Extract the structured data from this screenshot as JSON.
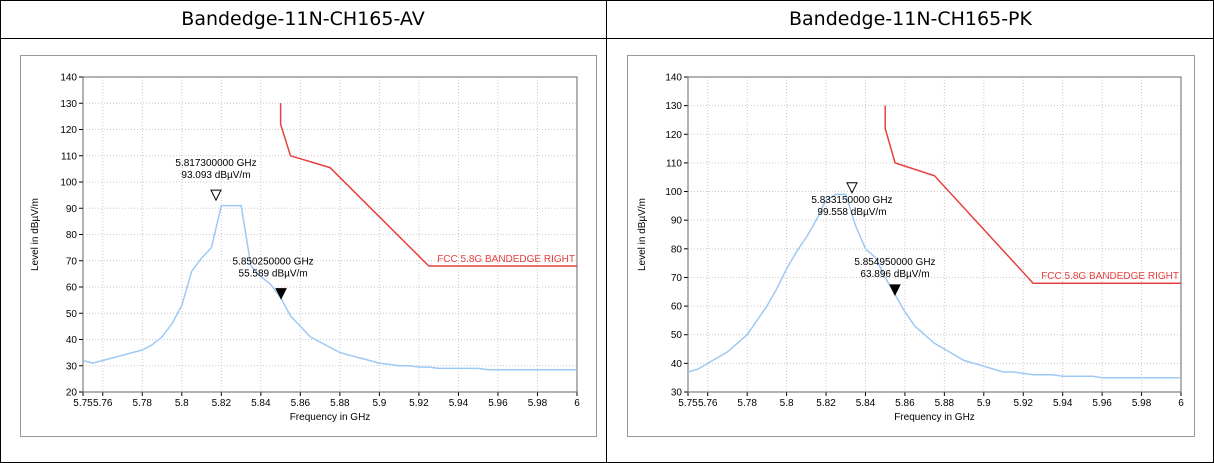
{
  "chart_data": [
    {
      "type": "line",
      "title": "Bandedge-11N-CH165-AV",
      "x_label": "Frequency in GHz",
      "y_label": "Level in dBµV/m",
      "xlim": [
        5.75,
        6
      ],
      "xticks": [
        5.75,
        5.76,
        5.78,
        5.8,
        5.82,
        5.84,
        5.86,
        5.88,
        5.9,
        5.92,
        5.94,
        5.96,
        5.98,
        6
      ],
      "ylim": [
        20,
        140
      ],
      "yticks": [
        20,
        30,
        40,
        50,
        60,
        70,
        80,
        90,
        100,
        110,
        120,
        130,
        140
      ],
      "grid": true,
      "x": [
        5.75,
        5.755,
        5.76,
        5.765,
        5.77,
        5.775,
        5.78,
        5.785,
        5.79,
        5.795,
        5.8,
        5.805,
        5.81,
        5.815,
        5.82,
        5.825,
        5.83,
        5.835,
        5.84,
        5.845,
        5.85,
        5.855,
        5.86,
        5.865,
        5.87,
        5.875,
        5.88,
        5.885,
        5.89,
        5.895,
        5.9,
        5.905,
        5.91,
        5.915,
        5.92,
        5.925,
        5.93,
        5.935,
        5.94,
        5.945,
        5.95,
        5.955,
        5.96,
        5.965,
        5.97,
        5.975,
        5.98,
        5.985,
        5.99,
        5.995,
        6
      ],
      "series": [
        {
          "color": "#9ec9f5",
          "values": [
            32,
            31,
            32,
            33,
            34,
            35,
            36,
            38,
            41,
            46,
            53,
            66,
            71,
            75,
            91,
            91,
            91,
            68,
            64,
            61,
            56,
            49,
            45,
            41,
            39,
            37,
            35,
            34,
            33,
            32,
            31,
            30.5,
            30,
            30,
            29.5,
            29.5,
            29,
            29,
            29,
            29,
            29,
            28.5,
            28.5,
            28.5,
            28.5,
            28.5,
            28.5,
            28.5,
            28.5,
            28.5,
            28.5
          ]
        }
      ],
      "limit": {
        "name": "FCC 5.8G BANDEDGE RIGHT",
        "color": "#e8403f",
        "x": [
          5.85,
          5.85,
          5.855,
          5.875,
          5.925,
          6
        ],
        "values": [
          130,
          122,
          110,
          105.5,
          68,
          68
        ]
      },
      "markers": [
        {
          "x": 5.8173,
          "y": 93.093,
          "label_x": "5.817300000 GHz",
          "label_y": "93.093 dBµV/m",
          "filled": false
        },
        {
          "x": 5.85025,
          "y": 55.589,
          "label_x": "5.850250000 GHz",
          "label_y": "55.589 dBµV/m",
          "filled": true
        }
      ]
    },
    {
      "type": "line",
      "title": "Bandedge-11N-CH165-PK",
      "x_label": "Frequency in GHz",
      "y_label": "Level in dBµV/m",
      "xlim": [
        5.75,
        6
      ],
      "xticks": [
        5.75,
        5.76,
        5.78,
        5.8,
        5.82,
        5.84,
        5.86,
        5.88,
        5.9,
        5.92,
        5.94,
        5.96,
        5.98,
        6
      ],
      "ylim": [
        30,
        140
      ],
      "yticks": [
        30,
        40,
        50,
        60,
        70,
        80,
        90,
        100,
        110,
        120,
        130,
        140
      ],
      "grid": true,
      "x": [
        5.75,
        5.755,
        5.76,
        5.765,
        5.77,
        5.775,
        5.78,
        5.785,
        5.79,
        5.795,
        5.8,
        5.805,
        5.81,
        5.815,
        5.82,
        5.825,
        5.83,
        5.835,
        5.84,
        5.845,
        5.85,
        5.855,
        5.86,
        5.865,
        5.87,
        5.875,
        5.88,
        5.885,
        5.89,
        5.895,
        5.9,
        5.905,
        5.91,
        5.915,
        5.92,
        5.925,
        5.93,
        5.935,
        5.94,
        5.945,
        5.95,
        5.955,
        5.96,
        5.965,
        5.97,
        5.975,
        5.98,
        5.985,
        5.99,
        5.995,
        6
      ],
      "series": [
        {
          "color": "#9ec9f5",
          "values": [
            37,
            38,
            40,
            42,
            44,
            47,
            50,
            55,
            60,
            66,
            73,
            79,
            84,
            90,
            97,
            99,
            99,
            88,
            80,
            77,
            70,
            64,
            58,
            53,
            50,
            47,
            45,
            43,
            41,
            40,
            39,
            38,
            37,
            37,
            36.5,
            36,
            36,
            36,
            35.5,
            35.5,
            35.5,
            35.5,
            35,
            35,
            35,
            35,
            35,
            35,
            35,
            35,
            35
          ]
        }
      ],
      "limit": {
        "name": "FCC 5.8G BANDEDGE RIGHT",
        "color": "#e8403f",
        "x": [
          5.85,
          5.85,
          5.855,
          5.875,
          5.925,
          6
        ],
        "values": [
          130,
          122,
          110,
          105.5,
          68,
          68
        ]
      },
      "markers": [
        {
          "x": 5.83315,
          "y": 99.558,
          "label_x": "5.833150000 GHz",
          "label_y": "99.558 dBµV/m",
          "filled": false
        },
        {
          "x": 5.85495,
          "y": 63.896,
          "label_x": "5.854950000 GHz",
          "label_y": "63.896 dBµV/m",
          "filled": true
        }
      ]
    }
  ]
}
